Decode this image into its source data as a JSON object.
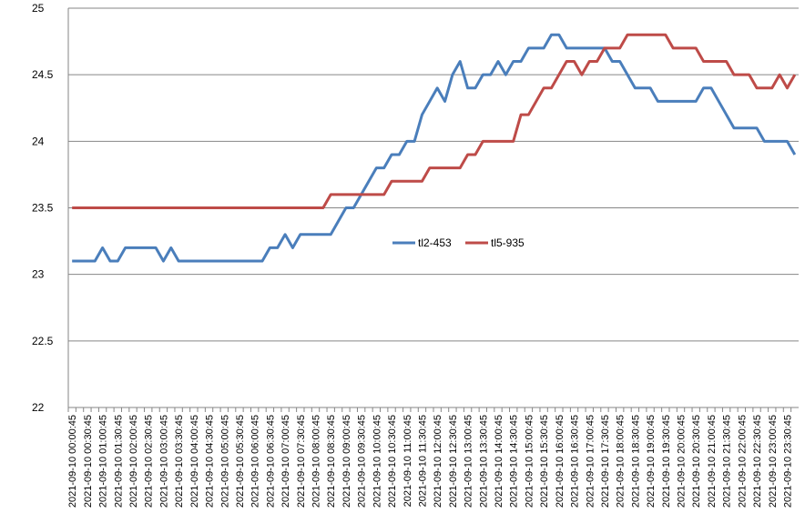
{
  "chart_data": {
    "type": "line",
    "categories": [
      "2021-09-10 00:00:45",
      null,
      "2021-09-10 00:30:45",
      null,
      "2021-09-10 01:00:45",
      null,
      "2021-09-10 01:30:45",
      null,
      "2021-09-10 02:00:45",
      null,
      "2021-09-10 02:30:45",
      null,
      "2021-09-10 03:00:45",
      null,
      "2021-09-10 03:30:45",
      null,
      "2021-09-10 04:00:45",
      null,
      "2021-09-10 04:30:45",
      null,
      "2021-09-10 05:00:45",
      null,
      "2021-09-10 05:30:45",
      null,
      "2021-09-10 06:00:45",
      null,
      "2021-09-10 06:30:45",
      null,
      "2021-09-10 07:00:45",
      null,
      "2021-09-10 07:30:45",
      null,
      "2021-09-10 08:00:45",
      null,
      "2021-09-10 08:30:45",
      null,
      "2021-09-10 09:00:45",
      null,
      "2021-09-10 09:30:45",
      null,
      "2021-09-10 10:00:45",
      null,
      "2021-09-10 10:30:45",
      null,
      "2021-09-10 11:00:45",
      null,
      "2021-09-10 11:30:45",
      null,
      "2021-09-10 12:00:45",
      null,
      "2021-09-10 12:30:45",
      null,
      "2021-09-10 13:00:45",
      null,
      "2021-09-10 13:30:45",
      null,
      "2021-09-10 14:00:45",
      null,
      "2021-09-10 14:30:45",
      null,
      "2021-09-10 15:00:45",
      null,
      "2021-09-10 15:30:45",
      null,
      "2021-09-10 16:00:45",
      null,
      "2021-09-10 16:30:45",
      null,
      "2021-09-10 17:00:45",
      null,
      "2021-09-10 17:30:45",
      null,
      "2021-09-10 18:00:45",
      null,
      "2021-09-10 18:30:45",
      null,
      "2021-09-10 19:00:45",
      null,
      "2021-09-10 19:30:45",
      null,
      "2021-09-10 20:00:45",
      null,
      "2021-09-10 20:30:45",
      null,
      "2021-09-10 21:00:45",
      null,
      "2021-09-10 21:30:45",
      null,
      "2021-09-10 22:00:45",
      null,
      "2021-09-10 22:30:45",
      null,
      "2021-09-10 23:00:45",
      null,
      "2021-09-10 23:30:45",
      null
    ],
    "series": [
      {
        "name": "tl2-453",
        "color": "#4a7ebb",
        "values": [
          23.1,
          23.1,
          23.1,
          23.1,
          23.2,
          23.1,
          23.1,
          23.2,
          23.2,
          23.2,
          23.2,
          23.2,
          23.1,
          23.2,
          23.1,
          23.1,
          23.1,
          23.1,
          23.1,
          23.1,
          23.1,
          23.1,
          23.1,
          23.1,
          23.1,
          23.1,
          23.2,
          23.2,
          23.3,
          23.2,
          23.3,
          23.3,
          23.3,
          23.3,
          23.3,
          23.4,
          23.5,
          23.5,
          23.6,
          23.7,
          23.8,
          23.8,
          23.9,
          23.9,
          24.0,
          24.0,
          24.2,
          24.3,
          24.4,
          24.3,
          24.5,
          24.6,
          24.4,
          24.4,
          24.5,
          24.5,
          24.6,
          24.5,
          24.6,
          24.6,
          24.7,
          24.7,
          24.7,
          24.8,
          24.8,
          24.7,
          24.7,
          24.7,
          24.7,
          24.7,
          24.7,
          24.6,
          24.6,
          24.5,
          24.4,
          24.4,
          24.4,
          24.3,
          24.3,
          24.3,
          24.3,
          24.3,
          24.3,
          24.4,
          24.4,
          24.3,
          24.2,
          24.1,
          24.1,
          24.1,
          24.1,
          24.0,
          24.0,
          24.0,
          24.0,
          23.9
        ]
      },
      {
        "name": "tl5-935",
        "color": "#be4b48",
        "values": [
          23.5,
          23.5,
          23.5,
          23.5,
          23.5,
          23.5,
          23.5,
          23.5,
          23.5,
          23.5,
          23.5,
          23.5,
          23.5,
          23.5,
          23.5,
          23.5,
          23.5,
          23.5,
          23.5,
          23.5,
          23.5,
          23.5,
          23.5,
          23.5,
          23.5,
          23.5,
          23.5,
          23.5,
          23.5,
          23.5,
          23.5,
          23.5,
          23.5,
          23.5,
          23.6,
          23.6,
          23.6,
          23.6,
          23.6,
          23.6,
          23.6,
          23.6,
          23.7,
          23.7,
          23.7,
          23.7,
          23.7,
          23.8,
          23.8,
          23.8,
          23.8,
          23.8,
          23.9,
          23.9,
          24.0,
          24.0,
          24.0,
          24.0,
          24.0,
          24.2,
          24.2,
          24.3,
          24.4,
          24.4,
          24.5,
          24.6,
          24.6,
          24.5,
          24.6,
          24.6,
          24.7,
          24.7,
          24.7,
          24.8,
          24.8,
          24.8,
          24.8,
          24.8,
          24.8,
          24.7,
          24.7,
          24.7,
          24.7,
          24.6,
          24.6,
          24.6,
          24.6,
          24.5,
          24.5,
          24.5,
          24.4,
          24.4,
          24.4,
          24.5,
          24.4,
          24.5
        ]
      }
    ],
    "ylim": [
      22,
      25
    ],
    "yticks": [
      22,
      22.5,
      23,
      23.5,
      24,
      24.5,
      25
    ],
    "grid": true,
    "legend": "center"
  }
}
